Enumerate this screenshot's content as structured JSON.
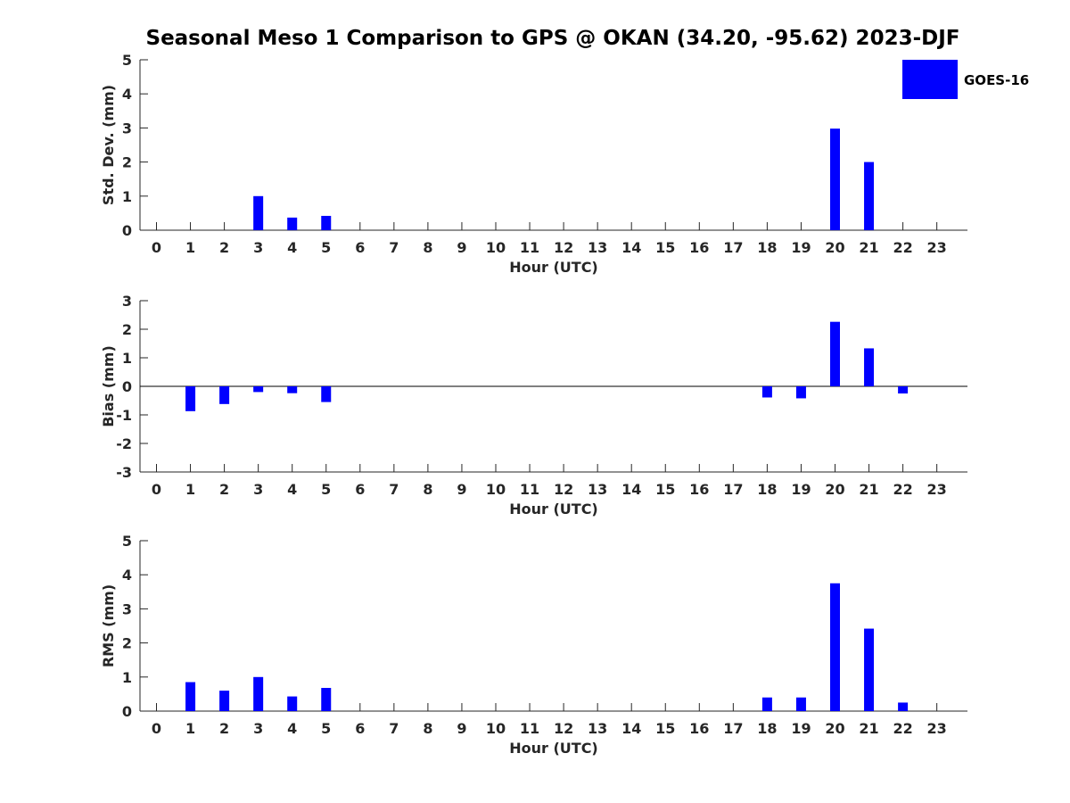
{
  "title": "Seasonal Meso 1 Comparison to GPS @ OKAN (34.20, -95.62) 2023-DJF",
  "legend": {
    "label": "GOES-16",
    "color": "#0000ff"
  },
  "chart_data": [
    {
      "type": "bar",
      "xlabel": "Hour (UTC)",
      "ylabel": "Std. Dev. (mm)",
      "ylim": [
        0,
        5
      ],
      "yticks": [
        0,
        1,
        2,
        3,
        4,
        5
      ],
      "categories": [
        "0",
        "1",
        "2",
        "3",
        "4",
        "5",
        "6",
        "7",
        "8",
        "9",
        "10",
        "11",
        "12",
        "13",
        "14",
        "15",
        "16",
        "17",
        "18",
        "19",
        "20",
        "21",
        "22",
        "23"
      ],
      "series": [
        {
          "name": "GOES-16",
          "color": "#0000ff",
          "values": [
            0,
            0,
            0,
            1.0,
            0.37,
            0.42,
            0,
            0,
            0,
            0,
            0,
            0,
            0,
            0,
            0,
            0,
            0,
            0,
            0,
            0,
            2.98,
            2.0,
            0,
            0
          ]
        }
      ],
      "zero_line": false
    },
    {
      "type": "bar",
      "xlabel": "Hour (UTC)",
      "ylabel": "Bias (mm)",
      "ylim": [
        -3,
        3
      ],
      "yticks": [
        -3,
        -2,
        -1,
        0,
        1,
        2,
        3
      ],
      "categories": [
        "0",
        "1",
        "2",
        "3",
        "4",
        "5",
        "6",
        "7",
        "8",
        "9",
        "10",
        "11",
        "12",
        "13",
        "14",
        "15",
        "16",
        "17",
        "18",
        "19",
        "20",
        "21",
        "22",
        "23"
      ],
      "series": [
        {
          "name": "GOES-16",
          "color": "#0000ff",
          "values": [
            0,
            -0.87,
            -0.62,
            -0.2,
            -0.24,
            -0.55,
            0,
            0,
            0,
            0,
            0,
            0,
            0,
            0,
            0,
            0,
            0,
            0,
            -0.39,
            -0.42,
            2.26,
            1.33,
            -0.25,
            0
          ]
        }
      ],
      "zero_line": true
    },
    {
      "type": "bar",
      "xlabel": "Hour (UTC)",
      "ylabel": "RMS (mm)",
      "ylim": [
        0,
        5
      ],
      "yticks": [
        0,
        1,
        2,
        3,
        4,
        5
      ],
      "categories": [
        "0",
        "1",
        "2",
        "3",
        "4",
        "5",
        "6",
        "7",
        "8",
        "9",
        "10",
        "11",
        "12",
        "13",
        "14",
        "15",
        "16",
        "17",
        "18",
        "19",
        "20",
        "21",
        "22",
        "23"
      ],
      "series": [
        {
          "name": "GOES-16",
          "color": "#0000ff",
          "values": [
            0,
            0.85,
            0.6,
            1.0,
            0.43,
            0.68,
            0,
            0,
            0,
            0,
            0,
            0,
            0,
            0,
            0,
            0,
            0,
            0,
            0.4,
            0.4,
            3.75,
            2.42,
            0.25,
            0
          ]
        }
      ],
      "zero_line": false
    }
  ]
}
